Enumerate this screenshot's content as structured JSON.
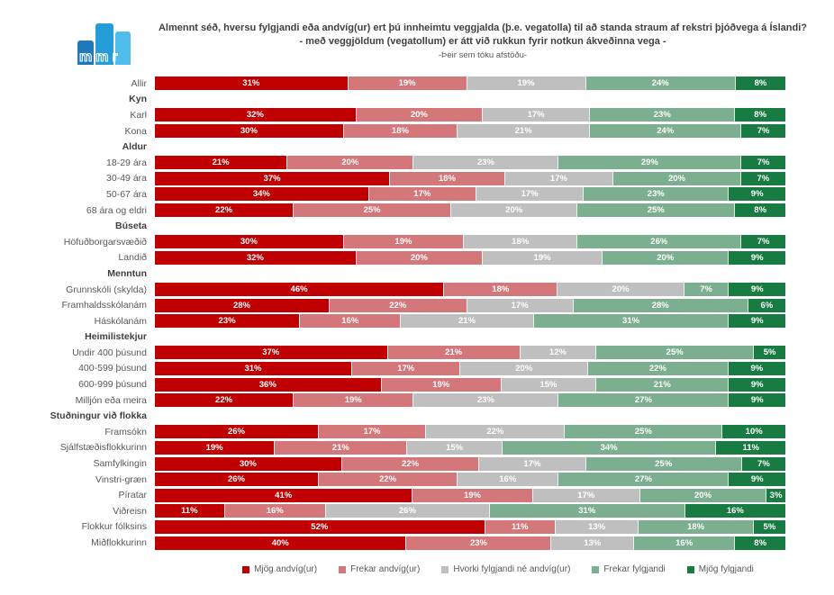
{
  "logo": {
    "letters": "mmr"
  },
  "title": {
    "line1": "Almennt séð, hversu fylgjandi eða andvíg(ur) ert þú innheimtu veggjalda (þ.e. vegatolla) til að standa straum af rekstri þjóðvega á Íslandi?",
    "line2": "- með veggjöldum (vegatollum) er átt við rukkun fyrir notkun ákveðinna vega -",
    "line3": "-Þeir sem tóku afstöðu-"
  },
  "colors": {
    "mjog_andvig": "#C00000",
    "frekar_andvig": "#D4777A",
    "hvorki": "#BFBFBF",
    "frekar_fylgjandi": "#7CAE90",
    "mjog_fylgjandi": "#177B42"
  },
  "chart_data": {
    "type": "bar",
    "subtype": "stacked_horizontal",
    "unit": "%",
    "xlim": [
      0,
      100
    ],
    "value_labels": "inside_white_percent",
    "legend_position": "bottom",
    "categories": [
      "Allir",
      "Karl",
      "Kona",
      "18-29 ára",
      "30-49 ára",
      "50-67 ára",
      "68 ára og eldri",
      "Höfuðborgarsvæðið",
      "Landið",
      "Grunnskóli (skylda)",
      "Framhaldsskólanám",
      "Háskólanám",
      "Undir 400 þúsund",
      "400-599 þúsund",
      "600-999 þúsund",
      "Milljón eða meira",
      "Framsókn",
      "Sjálfstæðisflokkurinn",
      "Samfylkingin",
      "Vinstri-græn",
      "Píratar",
      "Viðreisn",
      "Flokkur fólksins",
      "Miðflokkurinn"
    ],
    "group_headers": [
      {
        "label": "Kyn",
        "before_index": 1
      },
      {
        "label": "Aldur",
        "before_index": 3
      },
      {
        "label": "Búseta",
        "before_index": 7
      },
      {
        "label": "Menntun",
        "before_index": 9
      },
      {
        "label": "Heimilistekjur",
        "before_index": 12
      },
      {
        "label": "Stuðningur við flokka",
        "before_index": 16
      }
    ],
    "series": [
      {
        "name": "Mjög andvíg(ur)",
        "color": "#C00000",
        "values": [
          31,
          32,
          30,
          21,
          37,
          34,
          22,
          30,
          32,
          46,
          28,
          23,
          37,
          31,
          36,
          22,
          26,
          19,
          30,
          26,
          41,
          11,
          52,
          40
        ]
      },
      {
        "name": "Frekar andvíg(ur)",
        "color": "#D4777A",
        "values": [
          19,
          20,
          18,
          20,
          18,
          17,
          25,
          19,
          20,
          18,
          22,
          16,
          21,
          17,
          19,
          19,
          17,
          21,
          22,
          22,
          19,
          16,
          11,
          23
        ]
      },
      {
        "name": "Hvorki fylgjandi né andvíg(ur)",
        "color": "#BFBFBF",
        "values": [
          19,
          17,
          21,
          23,
          17,
          17,
          20,
          18,
          19,
          20,
          17,
          21,
          12,
          20,
          15,
          23,
          22,
          15,
          17,
          16,
          17,
          26,
          13,
          13
        ]
      },
      {
        "name": "Frekar fylgjandi",
        "color": "#7CAE90",
        "values": [
          24,
          23,
          24,
          29,
          20,
          23,
          25,
          26,
          20,
          7,
          28,
          31,
          25,
          22,
          21,
          27,
          25,
          34,
          25,
          27,
          20,
          31,
          18,
          16
        ]
      },
      {
        "name": "Mjög fylgjandi",
        "color": "#177B42",
        "values": [
          8,
          8,
          7,
          7,
          7,
          9,
          8,
          7,
          9,
          9,
          6,
          9,
          5,
          9,
          9,
          9,
          10,
          11,
          7,
          9,
          3,
          16,
          5,
          8
        ]
      }
    ]
  }
}
